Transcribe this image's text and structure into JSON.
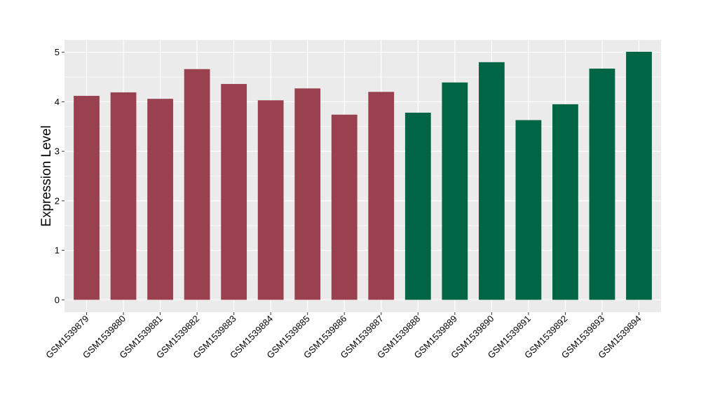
{
  "chart_data": {
    "type": "bar",
    "title": "",
    "xlabel": "",
    "ylabel": "Expression Level",
    "ylim": [
      -0.25,
      5.25
    ],
    "yticks": [
      0,
      1,
      2,
      3,
      4,
      5
    ],
    "grid": true,
    "legend": "none",
    "categories": [
      "GSM1539879",
      "GSM1539880",
      "GSM1539881",
      "GSM1539882",
      "GSM1539883",
      "GSM1539884",
      "GSM1539885",
      "GSM1539886",
      "GSM1539887",
      "GSM1539888",
      "GSM1539889",
      "GSM1539890",
      "GSM1539891",
      "GSM1539892",
      "GSM1539893",
      "GSM1539894"
    ],
    "values": [
      4.12,
      4.19,
      4.06,
      4.66,
      4.36,
      4.03,
      4.27,
      3.74,
      4.2,
      3.78,
      4.39,
      4.8,
      3.63,
      3.95,
      4.67,
      5.01
    ],
    "bar_colors": [
      "#9a4150",
      "#9a4150",
      "#9a4150",
      "#9a4150",
      "#9a4150",
      "#9a4150",
      "#9a4150",
      "#9a4150",
      "#9a4150",
      "#006544",
      "#006544",
      "#006544",
      "#006544",
      "#006544",
      "#006544",
      "#006544"
    ],
    "panel_background": "#ebebeb",
    "gridline_color": "#ffffff"
  }
}
